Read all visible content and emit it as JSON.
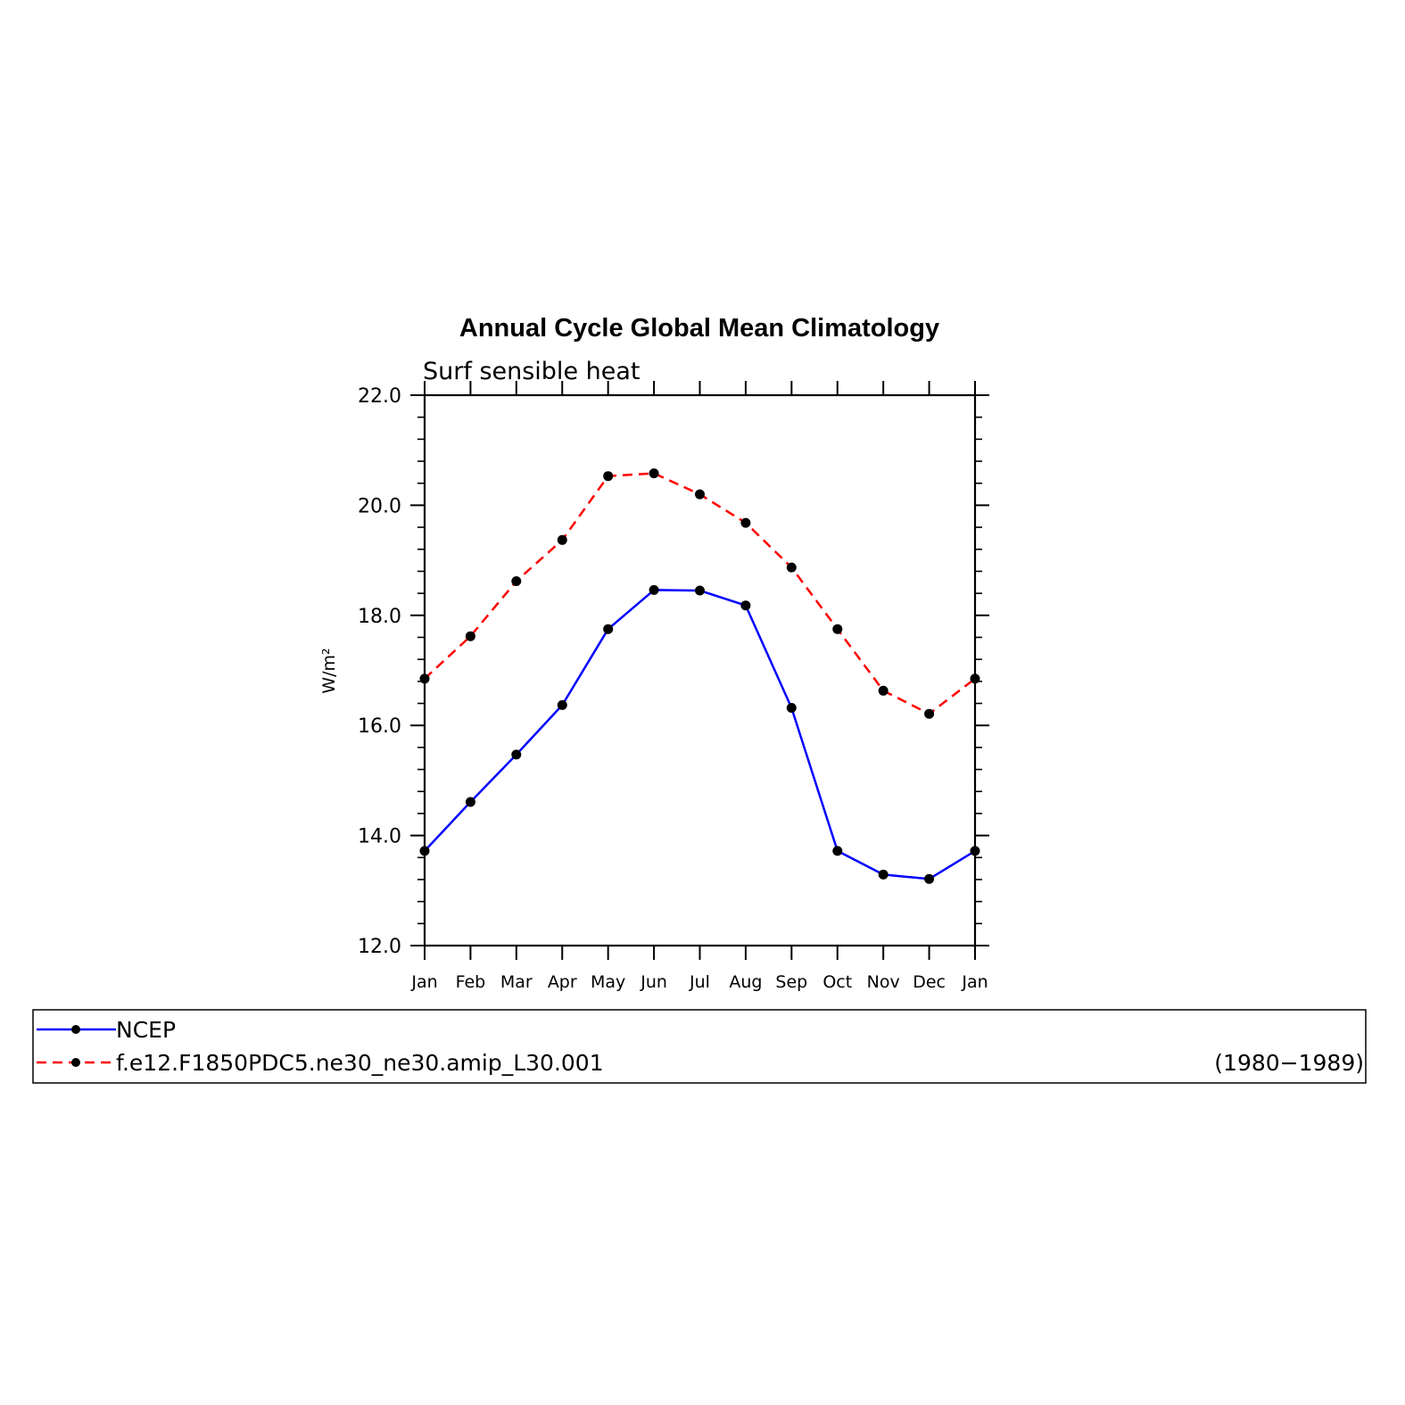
{
  "chart_data": {
    "type": "line",
    "title": "Annual Cycle Global Mean Climatology",
    "subtitle": "Surf sensible heat",
    "ylabel": "W/m²",
    "xlabel": "",
    "categories": [
      "Jan",
      "Feb",
      "Mar",
      "Apr",
      "May",
      "Jun",
      "Jul",
      "Aug",
      "Sep",
      "Oct",
      "Nov",
      "Dec",
      "Jan"
    ],
    "ylim": [
      12.0,
      22.0
    ],
    "yticks": [
      "12.0",
      "14.0",
      "16.0",
      "18.0",
      "20.0",
      "22.0"
    ],
    "grid": false,
    "legend_position": "bottom",
    "series": [
      {
        "name": "NCEP",
        "color": "#0000ff",
        "dash": "solid",
        "values": [
          13.72,
          14.61,
          15.47,
          16.37,
          17.75,
          18.46,
          18.45,
          18.18,
          16.32,
          13.72,
          13.29,
          13.21,
          13.72
        ]
      },
      {
        "name": "f.e12.F1850PDC5.ne30_ne30.amip_L30.001",
        "color": "#ff0000",
        "dash": "dashed",
        "values": [
          16.85,
          17.62,
          18.62,
          19.37,
          20.53,
          20.58,
          20.2,
          19.68,
          18.87,
          17.75,
          16.63,
          16.21,
          16.85
        ]
      }
    ],
    "legend_note": "(1980−1989)",
    "marker_color": "#000000"
  }
}
